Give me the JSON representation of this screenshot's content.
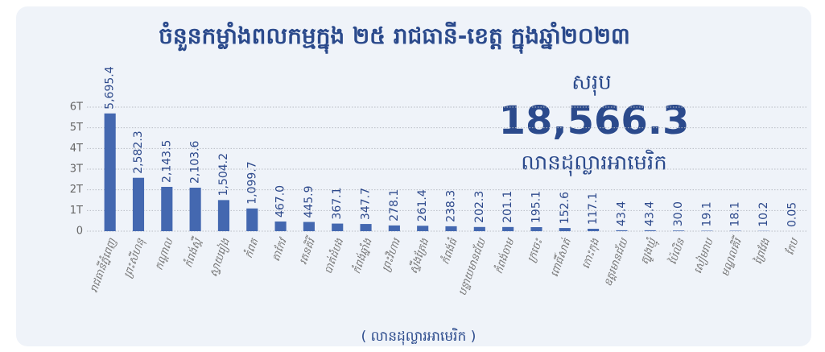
{
  "chart_data": {
    "type": "bar",
    "title": "ចំនួនកម្លាំងពលកម្មក្នុង ២៥ រាជធានី-ខេត្ត ក្នុងឆ្នាំ២០២៣",
    "annotations": [
      "សរុប",
      "18,566.3",
      "លានដុល្លារអាមេរិក"
    ],
    "x_label": "( លានដុល្លារអាមេរិក )",
    "categories": [
      "រាជធានីភ្នំពេញ",
      "ព្រះសីហនុ",
      "កណ្តាល",
      "កំពង់ស្ពឺ",
      "ស្វាយរៀង",
      "កំពត",
      "តាកែវ",
      "រតនគិរី",
      "បាត់ដំបង",
      "កំពង់ឆ្នាំង",
      "ព្រះវិហារ",
      "ស្ទឹងត្រែង",
      "កំពង់ធំ",
      "បន្ទាយមានជ័យ",
      "កំពង់ចាម",
      "ក្រចេះ",
      "ពោធិ៍សាត់",
      "កោះកុង",
      "ឧត្តរមានជ័យ",
      "ត្បូងឃ្មុំ",
      "ប៉ៃលិន",
      "សៀមរាប",
      "មណ្ឌលគិរី",
      "ព្រៃវែង",
      "កែប"
    ],
    "values": [
      5695.4,
      2582.3,
      2143.5,
      2103.6,
      1504.2,
      1099.7,
      467.0,
      445.9,
      367.1,
      347.7,
      278.1,
      261.4,
      238.3,
      202.3,
      201.1,
      195.1,
      152.6,
      117.1,
      43.4,
      43.4,
      30.0,
      19.1,
      18.1,
      10.2,
      0.05
    ],
    "value_labels": [
      "5,695.4",
      "2,582.3",
      "2,143.5",
      "2,103.6",
      "1,504.2",
      "1,099.7",
      "467.0",
      "445.9",
      "367.1",
      "347.7",
      "278.1",
      "261.4",
      "238.3",
      "202.3",
      "201.1",
      "195.1",
      "152.6",
      "117.1",
      "43.4",
      "43.4",
      "30.0",
      "19.1",
      "18.1",
      "10.2",
      "0.05"
    ],
    "color": "#4468b0",
    "ylim": [
      0,
      6000
    ],
    "yticks": [
      0,
      {
        "value": 1000,
        "label": "1T"
      },
      {
        "value": 2000,
        "label": "2T"
      },
      {
        "value": 3000,
        "label": "3T"
      },
      {
        "value": 4000,
        "label": "4T"
      },
      {
        "value": 5000,
        "label": "5T"
      },
      {
        "value": 6000,
        "label": "6T"
      }
    ],
    "grid": true
  }
}
